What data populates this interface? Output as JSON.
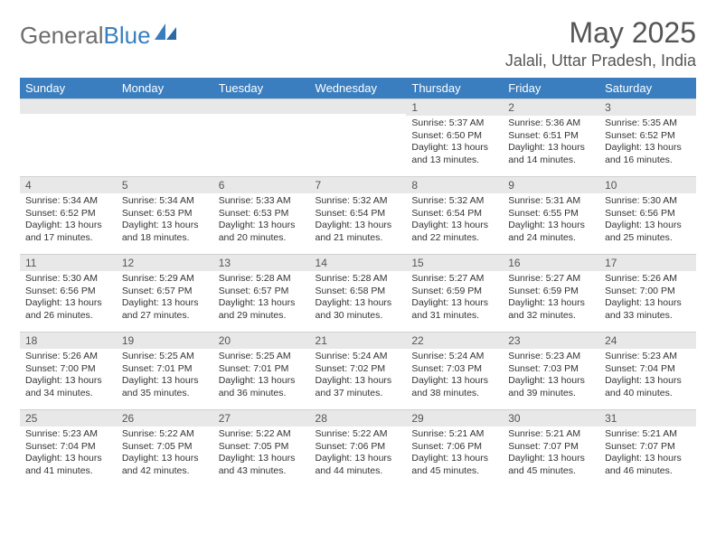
{
  "logo": {
    "word1": "General",
    "word2": "Blue"
  },
  "title": "May 2025",
  "location": "Jalali, Uttar Pradesh, India",
  "colors": {
    "header_bg": "#3a7ebf",
    "header_fg": "#ffffff",
    "daynum_bg": "#e8e8e8",
    "text": "#333333",
    "logo_gray": "#6d6d6d",
    "logo_blue": "#3a7ebf"
  },
  "weekdays": [
    "Sunday",
    "Monday",
    "Tuesday",
    "Wednesday",
    "Thursday",
    "Friday",
    "Saturday"
  ],
  "weeks": [
    [
      {
        "n": "",
        "lines": [
          "",
          "",
          "",
          ""
        ]
      },
      {
        "n": "",
        "lines": [
          "",
          "",
          "",
          ""
        ]
      },
      {
        "n": "",
        "lines": [
          "",
          "",
          "",
          ""
        ]
      },
      {
        "n": "",
        "lines": [
          "",
          "",
          "",
          ""
        ]
      },
      {
        "n": "1",
        "lines": [
          "Sunrise: 5:37 AM",
          "Sunset: 6:50 PM",
          "Daylight: 13 hours",
          "and 13 minutes."
        ]
      },
      {
        "n": "2",
        "lines": [
          "Sunrise: 5:36 AM",
          "Sunset: 6:51 PM",
          "Daylight: 13 hours",
          "and 14 minutes."
        ]
      },
      {
        "n": "3",
        "lines": [
          "Sunrise: 5:35 AM",
          "Sunset: 6:52 PM",
          "Daylight: 13 hours",
          "and 16 minutes."
        ]
      }
    ],
    [
      {
        "n": "4",
        "lines": [
          "Sunrise: 5:34 AM",
          "Sunset: 6:52 PM",
          "Daylight: 13 hours",
          "and 17 minutes."
        ]
      },
      {
        "n": "5",
        "lines": [
          "Sunrise: 5:34 AM",
          "Sunset: 6:53 PM",
          "Daylight: 13 hours",
          "and 18 minutes."
        ]
      },
      {
        "n": "6",
        "lines": [
          "Sunrise: 5:33 AM",
          "Sunset: 6:53 PM",
          "Daylight: 13 hours",
          "and 20 minutes."
        ]
      },
      {
        "n": "7",
        "lines": [
          "Sunrise: 5:32 AM",
          "Sunset: 6:54 PM",
          "Daylight: 13 hours",
          "and 21 minutes."
        ]
      },
      {
        "n": "8",
        "lines": [
          "Sunrise: 5:32 AM",
          "Sunset: 6:54 PM",
          "Daylight: 13 hours",
          "and 22 minutes."
        ]
      },
      {
        "n": "9",
        "lines": [
          "Sunrise: 5:31 AM",
          "Sunset: 6:55 PM",
          "Daylight: 13 hours",
          "and 24 minutes."
        ]
      },
      {
        "n": "10",
        "lines": [
          "Sunrise: 5:30 AM",
          "Sunset: 6:56 PM",
          "Daylight: 13 hours",
          "and 25 minutes."
        ]
      }
    ],
    [
      {
        "n": "11",
        "lines": [
          "Sunrise: 5:30 AM",
          "Sunset: 6:56 PM",
          "Daylight: 13 hours",
          "and 26 minutes."
        ]
      },
      {
        "n": "12",
        "lines": [
          "Sunrise: 5:29 AM",
          "Sunset: 6:57 PM",
          "Daylight: 13 hours",
          "and 27 minutes."
        ]
      },
      {
        "n": "13",
        "lines": [
          "Sunrise: 5:28 AM",
          "Sunset: 6:57 PM",
          "Daylight: 13 hours",
          "and 29 minutes."
        ]
      },
      {
        "n": "14",
        "lines": [
          "Sunrise: 5:28 AM",
          "Sunset: 6:58 PM",
          "Daylight: 13 hours",
          "and 30 minutes."
        ]
      },
      {
        "n": "15",
        "lines": [
          "Sunrise: 5:27 AM",
          "Sunset: 6:59 PM",
          "Daylight: 13 hours",
          "and 31 minutes."
        ]
      },
      {
        "n": "16",
        "lines": [
          "Sunrise: 5:27 AM",
          "Sunset: 6:59 PM",
          "Daylight: 13 hours",
          "and 32 minutes."
        ]
      },
      {
        "n": "17",
        "lines": [
          "Sunrise: 5:26 AM",
          "Sunset: 7:00 PM",
          "Daylight: 13 hours",
          "and 33 minutes."
        ]
      }
    ],
    [
      {
        "n": "18",
        "lines": [
          "Sunrise: 5:26 AM",
          "Sunset: 7:00 PM",
          "Daylight: 13 hours",
          "and 34 minutes."
        ]
      },
      {
        "n": "19",
        "lines": [
          "Sunrise: 5:25 AM",
          "Sunset: 7:01 PM",
          "Daylight: 13 hours",
          "and 35 minutes."
        ]
      },
      {
        "n": "20",
        "lines": [
          "Sunrise: 5:25 AM",
          "Sunset: 7:01 PM",
          "Daylight: 13 hours",
          "and 36 minutes."
        ]
      },
      {
        "n": "21",
        "lines": [
          "Sunrise: 5:24 AM",
          "Sunset: 7:02 PM",
          "Daylight: 13 hours",
          "and 37 minutes."
        ]
      },
      {
        "n": "22",
        "lines": [
          "Sunrise: 5:24 AM",
          "Sunset: 7:03 PM",
          "Daylight: 13 hours",
          "and 38 minutes."
        ]
      },
      {
        "n": "23",
        "lines": [
          "Sunrise: 5:23 AM",
          "Sunset: 7:03 PM",
          "Daylight: 13 hours",
          "and 39 minutes."
        ]
      },
      {
        "n": "24",
        "lines": [
          "Sunrise: 5:23 AM",
          "Sunset: 7:04 PM",
          "Daylight: 13 hours",
          "and 40 minutes."
        ]
      }
    ],
    [
      {
        "n": "25",
        "lines": [
          "Sunrise: 5:23 AM",
          "Sunset: 7:04 PM",
          "Daylight: 13 hours",
          "and 41 minutes."
        ]
      },
      {
        "n": "26",
        "lines": [
          "Sunrise: 5:22 AM",
          "Sunset: 7:05 PM",
          "Daylight: 13 hours",
          "and 42 minutes."
        ]
      },
      {
        "n": "27",
        "lines": [
          "Sunrise: 5:22 AM",
          "Sunset: 7:05 PM",
          "Daylight: 13 hours",
          "and 43 minutes."
        ]
      },
      {
        "n": "28",
        "lines": [
          "Sunrise: 5:22 AM",
          "Sunset: 7:06 PM",
          "Daylight: 13 hours",
          "and 44 minutes."
        ]
      },
      {
        "n": "29",
        "lines": [
          "Sunrise: 5:21 AM",
          "Sunset: 7:06 PM",
          "Daylight: 13 hours",
          "and 45 minutes."
        ]
      },
      {
        "n": "30",
        "lines": [
          "Sunrise: 5:21 AM",
          "Sunset: 7:07 PM",
          "Daylight: 13 hours",
          "and 45 minutes."
        ]
      },
      {
        "n": "31",
        "lines": [
          "Sunrise: 5:21 AM",
          "Sunset: 7:07 PM",
          "Daylight: 13 hours",
          "and 46 minutes."
        ]
      }
    ]
  ]
}
